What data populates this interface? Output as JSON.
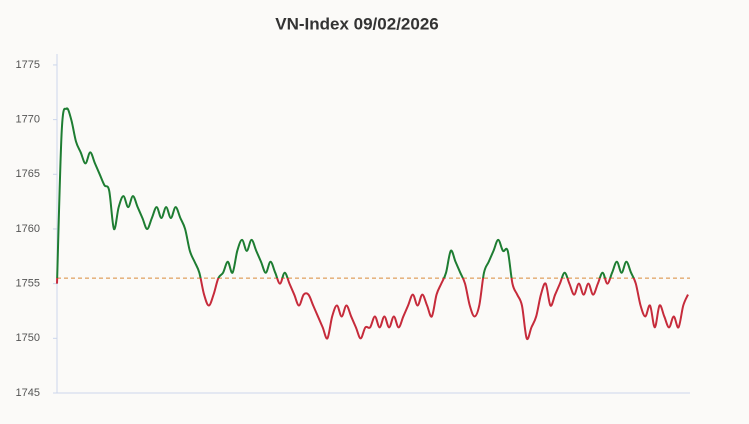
{
  "chart_data": {
    "type": "line",
    "title": "VN-Index 09/02/2026",
    "values": [
      1755,
      1769,
      1771,
      1770,
      1768,
      1767,
      1766,
      1767,
      1766,
      1765,
      1764,
      1763.5,
      1760,
      1762,
      1763,
      1762,
      1763,
      1762,
      1761,
      1760,
      1761,
      1762,
      1761,
      1762,
      1761,
      1762,
      1761,
      1760,
      1758,
      1757,
      1756,
      1754,
      1753,
      1754,
      1755.5,
      1756,
      1757,
      1756,
      1758,
      1759,
      1758,
      1759,
      1758,
      1757,
      1756,
      1757,
      1756,
      1755,
      1756,
      1755,
      1754,
      1753,
      1754,
      1754,
      1753,
      1752,
      1751,
      1750,
      1752,
      1753,
      1752,
      1753,
      1752,
      1751,
      1750,
      1751,
      1751,
      1752,
      1751,
      1752,
      1751,
      1752,
      1751,
      1752,
      1753,
      1754,
      1753,
      1754,
      1753,
      1752,
      1754,
      1755,
      1756,
      1758,
      1757,
      1756,
      1755,
      1753,
      1752,
      1753,
      1756,
      1757,
      1758,
      1759,
      1758,
      1758,
      1755,
      1754,
      1753,
      1750,
      1751,
      1752,
      1754,
      1755,
      1753,
      1754,
      1755,
      1756,
      1755,
      1754,
      1755,
      1754,
      1755,
      1754,
      1755,
      1756,
      1755,
      1756,
      1757,
      1756,
      1757,
      1756,
      1755,
      1753,
      1752,
      1753,
      1751,
      1753,
      1752,
      1751,
      1752,
      1751,
      1753,
      1754
    ],
    "reference": 1755.5,
    "up_color": "#1e7d32",
    "down_color": "#c62b3b",
    "reference_color": "#d98a3a",
    "ylim": [
      1745,
      1776
    ],
    "yticks": [
      1745,
      1750,
      1755,
      1760,
      1765,
      1770,
      1775
    ],
    "grid": false
  }
}
